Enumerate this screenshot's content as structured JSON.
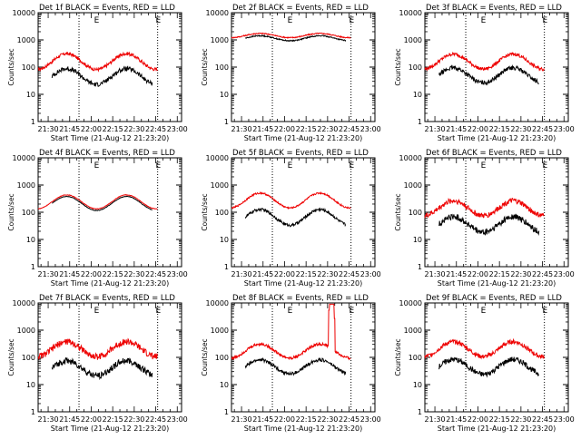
{
  "figure": {
    "xlabel": "Start Time (21-Aug-12 21:23:20)",
    "ylabel": "Counts/sec",
    "colors": {
      "events": "#000000",
      "lld": "#ee0000",
      "axes": "#000000"
    }
  },
  "chart_data": [
    {
      "type": "line",
      "title": "Det 1f BLACK = Events, RED = LLD",
      "yscale": "log",
      "ylim": [
        1,
        10000
      ],
      "yticks": [
        "1",
        "10",
        "100",
        "1000",
        "10000"
      ],
      "xticks": [
        "21:30",
        "21:45",
        "22:00",
        "22:15",
        "22:30",
        "22:45",
        "23:00"
      ],
      "xlim_min": [
        21.5,
        76.33
      ],
      "markers": [
        {
          "t": 36.33,
          "label": "E"
        },
        {
          "t": 79.33,
          "label": "E"
        }
      ],
      "series": [
        {
          "name": "LLD",
          "color": "#ee0000",
          "start": -7,
          "end": 76.33,
          "base": 160,
          "amp": 1.3,
          "noise": 0.06
        },
        {
          "name": "Events",
          "color": "#000000",
          "start": 2.67,
          "end": 72.67,
          "base": 45,
          "amp": 1.3,
          "noise": 0.08
        }
      ]
    },
    {
      "type": "line",
      "title": "Det 2f BLACK = Events, RED = LLD",
      "yscale": "log",
      "ylim": [
        1,
        10000
      ],
      "yticks": [
        "1",
        "10",
        "100",
        "1000",
        "10000"
      ],
      "xticks": [
        "21:30",
        "21:45",
        "22:00",
        "22:15",
        "22:30",
        "22:45",
        "23:00"
      ],
      "xlim_min": [
        21.5,
        76.33
      ],
      "markers": [
        {
          "t": 36.33,
          "label": "E"
        },
        {
          "t": 79.33,
          "label": "E"
        }
      ],
      "series": [
        {
          "name": "LLD",
          "color": "#ee0000",
          "start": -7,
          "end": 76.33,
          "base": 1450,
          "amp": 0.25,
          "noise": 0.02
        },
        {
          "name": "Events",
          "color": "#000000",
          "start": 2.67,
          "end": 72.67,
          "base": 1150,
          "amp": 0.3,
          "noise": 0.02
        }
      ]
    },
    {
      "type": "line",
      "title": "Det 3f BLACK = Events, RED = LLD",
      "yscale": "log",
      "ylim": [
        1,
        10000
      ],
      "yticks": [
        "1",
        "10",
        "100",
        "1000",
        "10000"
      ],
      "xticks": [
        "21:30",
        "21:45",
        "22:00",
        "22:15",
        "22:30",
        "22:45",
        "23:00"
      ],
      "xlim_min": [
        21.5,
        76.33
      ],
      "markers": [
        {
          "t": 36.33,
          "label": "E"
        },
        {
          "t": 79.33,
          "label": "E"
        }
      ],
      "series": [
        {
          "name": "LLD",
          "color": "#ee0000",
          "start": -7,
          "end": 76.33,
          "base": 160,
          "amp": 1.2,
          "noise": 0.06
        },
        {
          "name": "Events",
          "color": "#000000",
          "start": 2.67,
          "end": 72.67,
          "base": 50,
          "amp": 1.2,
          "noise": 0.08
        }
      ]
    },
    {
      "type": "line",
      "title": "Det 4f BLACK = Events, RED = LLD",
      "yscale": "log",
      "ylim": [
        1,
        10000
      ],
      "yticks": [
        "1",
        "10",
        "100",
        "1000",
        "10000"
      ],
      "xticks": [
        "21:30",
        "21:45",
        "22:00",
        "22:15",
        "22:30",
        "22:45",
        "23:00"
      ],
      "xlim_min": [
        21.5,
        76.33
      ],
      "markers": [
        {
          "t": 36.33,
          "label": "E"
        },
        {
          "t": 79.33,
          "label": "E"
        }
      ],
      "series": [
        {
          "name": "LLD",
          "color": "#ee0000",
          "start": -7,
          "end": 76.33,
          "base": 240,
          "amp": 1.1,
          "noise": 0.01
        },
        {
          "name": "Events",
          "color": "#000000",
          "start": 2.67,
          "end": 72.67,
          "base": 210,
          "amp": 1.1,
          "noise": 0.01
        }
      ]
    },
    {
      "type": "line",
      "title": "Det 5f BLACK = Events, RED = LLD",
      "yscale": "log",
      "ylim": [
        1,
        10000
      ],
      "yticks": [
        "1",
        "10",
        "100",
        "1000",
        "10000"
      ],
      "xticks": [
        "21:30",
        "21:45",
        "22:00",
        "22:15",
        "22:30",
        "22:45",
        "23:00"
      ],
      "xlim_min": [
        21.5,
        76.33
      ],
      "markers": [
        {
          "t": 36.33,
          "label": "E"
        },
        {
          "t": 79.33,
          "label": "E"
        }
      ],
      "series": [
        {
          "name": "LLD",
          "color": "#ee0000",
          "start": -7,
          "end": 76.33,
          "base": 270,
          "amp": 1.2,
          "noise": 0.03
        },
        {
          "name": "Events",
          "color": "#000000",
          "start": 2.67,
          "end": 72.67,
          "base": 65,
          "amp": 1.3,
          "noise": 0.05
        }
      ]
    },
    {
      "type": "line",
      "title": "Det 6f BLACK = Events, RED = LLD",
      "yscale": "log",
      "ylim": [
        1,
        10000
      ],
      "yticks": [
        "1",
        "10",
        "100",
        "1000",
        "10000"
      ],
      "xticks": [
        "21:30",
        "21:45",
        "22:00",
        "22:15",
        "22:30",
        "22:45",
        "23:00"
      ],
      "xlim_min": [
        21.5,
        76.33
      ],
      "markers": [
        {
          "t": 36.33,
          "label": "E"
        },
        {
          "t": 79.33,
          "label": "E"
        }
      ],
      "series": [
        {
          "name": "LLD",
          "color": "#ee0000",
          "start": -7,
          "end": 76.33,
          "base": 140,
          "amp": 1.2,
          "noise": 0.1
        },
        {
          "name": "Events",
          "color": "#000000",
          "start": 2.67,
          "end": 72.67,
          "base": 35,
          "amp": 1.3,
          "noise": 0.12
        }
      ]
    },
    {
      "type": "line",
      "title": "Det 7f BLACK = Events, RED = LLD",
      "yscale": "log",
      "ylim": [
        1,
        10000
      ],
      "yticks": [
        "1",
        "10",
        "100",
        "1000",
        "10000"
      ],
      "xticks": [
        "21:30",
        "21:45",
        "22:00",
        "22:15",
        "22:30",
        "22:45",
        "23:00"
      ],
      "xlim_min": [
        21.5,
        76.33
      ],
      "markers": [
        {
          "t": 36.33,
          "label": "E"
        },
        {
          "t": 79.33,
          "label": "E"
        }
      ],
      "series": [
        {
          "name": "LLD",
          "color": "#ee0000",
          "start": -7,
          "end": 76.33,
          "base": 200,
          "amp": 1.2,
          "noise": 0.12
        },
        {
          "name": "Events",
          "color": "#000000",
          "start": 2.67,
          "end": 72.67,
          "base": 40,
          "amp": 1.2,
          "noise": 0.12
        }
      ]
    },
    {
      "type": "line",
      "title": "Det 8f BLACK = Events, RED = LLD",
      "yscale": "log",
      "ylim": [
        1,
        10000
      ],
      "yticks": [
        "1",
        "10",
        "100",
        "1000",
        "10000"
      ],
      "xticks": [
        "21:30",
        "21:45",
        "22:00",
        "22:15",
        "22:30",
        "22:45",
        "23:00"
      ],
      "xlim_min": [
        21.5,
        76.33
      ],
      "markers": [
        {
          "t": 36.33,
          "label": "E"
        },
        {
          "t": 79.33,
          "label": "E"
        }
      ],
      "series": [
        {
          "name": "LLD",
          "color": "#ee0000",
          "start": -7,
          "end": 76.33,
          "base": 170,
          "amp": 1.1,
          "noise": 0.05,
          "spike": [
            60.5,
            65.0,
            9000
          ]
        },
        {
          "name": "Events",
          "color": "#000000",
          "start": 2.67,
          "end": 72.67,
          "base": 45,
          "amp": 1.1,
          "noise": 0.06
        }
      ]
    },
    {
      "type": "line",
      "title": "Det 9f BLACK = Events, RED = LLD",
      "yscale": "log",
      "ylim": [
        1,
        10000
      ],
      "yticks": [
        "1",
        "10",
        "100",
        "1000",
        "10000"
      ],
      "xticks": [
        "21:30",
        "21:45",
        "22:00",
        "22:15",
        "22:30",
        "22:45",
        "23:00"
      ],
      "xlim_min": [
        21.5,
        76.33
      ],
      "markers": [
        {
          "t": 36.33,
          "label": "E"
        },
        {
          "t": 79.33,
          "label": "E"
        }
      ],
      "series": [
        {
          "name": "LLD",
          "color": "#ee0000",
          "start": -7,
          "end": 76.33,
          "base": 200,
          "amp": 1.2,
          "noise": 0.08
        },
        {
          "name": "Events",
          "color": "#000000",
          "start": 2.67,
          "end": 72.67,
          "base": 45,
          "amp": 1.2,
          "noise": 0.1
        }
      ]
    }
  ]
}
